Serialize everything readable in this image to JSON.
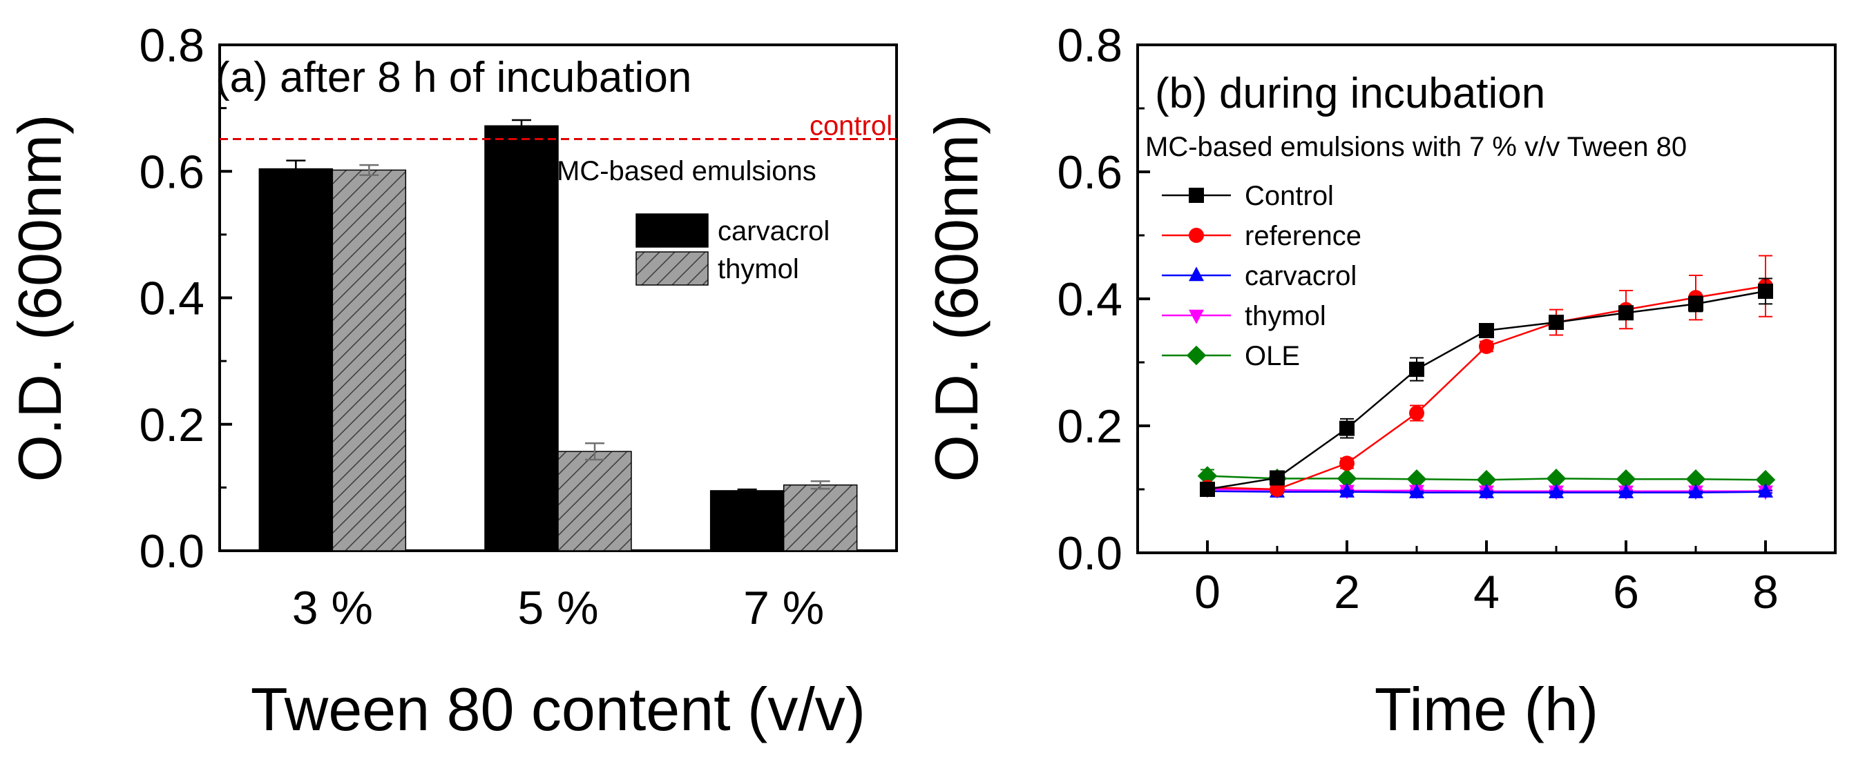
{
  "chart_data": [
    {
      "type": "bar",
      "title": "(a) after 8 h of incubation",
      "xlabel": "Tween 80 content (v/v)",
      "ylabel": "O.D. (600nm)",
      "ylim": [
        0,
        0.8
      ],
      "yticks": [
        "0.0",
        "0.2",
        "0.4",
        "0.6",
        "0.8"
      ],
      "categories": [
        "3 %",
        "5 %",
        "7 %"
      ],
      "series": [
        {
          "name": "carvacrol",
          "color": "#000000",
          "pattern": "solid",
          "values": [
            0.604,
            0.672,
            0.095
          ],
          "errors": [
            0.013,
            0.009,
            0.002
          ]
        },
        {
          "name": "thymol",
          "color": "#a0a0a0",
          "pattern": "hatch",
          "values": [
            0.602,
            0.157,
            0.104
          ],
          "errors": [
            0.008,
            0.013,
            0.006
          ]
        }
      ],
      "reference_line": {
        "label": "control",
        "value": 0.651,
        "color": "#e00000",
        "style": "dashed"
      },
      "annotation": "MC-based emulsions",
      "legend_position": "right-center"
    },
    {
      "type": "line",
      "title": "(b) during incubation",
      "subtitle": "MC-based emulsions with 7 % v/v Tween 80",
      "xlabel": "Time (h)",
      "ylabel": "O.D. (600nm)",
      "xlim": [
        -1,
        9
      ],
      "ylim": [
        0,
        0.8
      ],
      "xticks": [
        "0",
        "2",
        "4",
        "6",
        "8"
      ],
      "yticks": [
        "0.0",
        "0.2",
        "0.4",
        "0.6",
        "0.8"
      ],
      "x": [
        0,
        1,
        2,
        3,
        4,
        5,
        6,
        7,
        8
      ],
      "series": [
        {
          "name": "Control",
          "color": "#000000",
          "marker": "square",
          "values": [
            0.1,
            0.118,
            0.196,
            0.289,
            0.35,
            0.363,
            0.378,
            0.392,
            0.412
          ],
          "errors": [
            0.004,
            0.004,
            0.015,
            0.018,
            0.006,
            0.008,
            0.01,
            0.012,
            0.02
          ]
        },
        {
          "name": "reference",
          "color": "#ff0000",
          "marker": "circle",
          "values": [
            0.103,
            0.1,
            0.141,
            0.22,
            0.325,
            0.363,
            0.383,
            0.402,
            0.42
          ],
          "errors": [
            0.004,
            0.004,
            0.008,
            0.012,
            0.008,
            0.02,
            0.03,
            0.035,
            0.048
          ]
        },
        {
          "name": "carvacrol",
          "color": "#0000ff",
          "marker": "triangle-up",
          "values": [
            0.097,
            0.096,
            0.096,
            0.095,
            0.095,
            0.095,
            0.095,
            0.095,
            0.096
          ],
          "errors": [
            0.003,
            0.002,
            0.002,
            0.002,
            0.002,
            0.002,
            0.002,
            0.002,
            0.002
          ]
        },
        {
          "name": "thymol",
          "color": "#ff00ff",
          "marker": "triangle-down",
          "values": [
            0.1,
            0.099,
            0.098,
            0.098,
            0.097,
            0.097,
            0.097,
            0.097,
            0.097
          ],
          "errors": [
            0.002,
            0.002,
            0.002,
            0.002,
            0.002,
            0.002,
            0.002,
            0.002,
            0.002
          ]
        },
        {
          "name": "OLE",
          "color": "#008000",
          "marker": "diamond",
          "values": [
            0.121,
            0.117,
            0.117,
            0.116,
            0.115,
            0.117,
            0.116,
            0.116,
            0.115
          ],
          "errors": [
            0.01,
            0.003,
            0.002,
            0.002,
            0.002,
            0.002,
            0.002,
            0.002,
            0.002
          ]
        }
      ],
      "legend_position": "left-center"
    }
  ]
}
